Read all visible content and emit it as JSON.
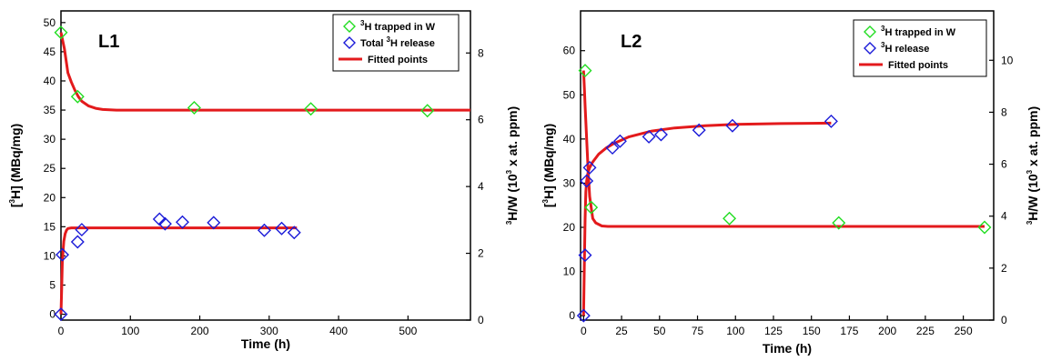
{
  "colors": {
    "trapped": "#22dd22",
    "release": "#1a1ad8",
    "fit": "#e31a1c",
    "axis": "#000000"
  },
  "chart_data": [
    {
      "type": "scatter",
      "panel_label": "L1",
      "xlabel": "Time (h)",
      "ylabel_prefix": "[",
      "ylabel_sup": "3",
      "ylabel_suffix": "H] (MBq/mg)",
      "y2label_sup": "3",
      "y2label_main": "H/W (10",
      "y2label_sup2": "3",
      "y2label_end": " x at. ppm)",
      "xlim": [
        0,
        590
      ],
      "ylim": [
        -1,
        52
      ],
      "y2lim": [
        0,
        9.26
      ],
      "xticks": [
        0,
        100,
        200,
        300,
        400,
        500
      ],
      "yticks": [
        0,
        5,
        10,
        15,
        20,
        25,
        30,
        35,
        40,
        45,
        50
      ],
      "y2ticks": [
        0,
        2,
        4,
        6,
        8
      ],
      "legend_position": "top-right",
      "legend": [
        {
          "pre": "",
          "sup": "3",
          "post": "H trapped in W",
          "kind": "marker",
          "series": "trapped"
        },
        {
          "pre": "Total ",
          "sup": "3",
          "post": "H release",
          "kind": "marker",
          "series": "release"
        },
        {
          "pre": "Fitted points",
          "sup": "",
          "post": "",
          "kind": "line",
          "series": "fit"
        }
      ],
      "series": [
        {
          "name": "3H trapped in W",
          "key": "trapped",
          "x": [
            0,
            24,
            192,
            360,
            528
          ],
          "y": [
            48.3,
            37.3,
            35.4,
            35.2,
            34.9
          ]
        },
        {
          "name": "Total 3H release",
          "key": "release",
          "x": [
            0,
            2,
            24,
            30,
            142,
            150,
            175,
            220,
            293,
            318,
            336
          ],
          "y": [
            0,
            10.2,
            12.4,
            14.5,
            16.3,
            15.5,
            15.8,
            15.7,
            14.4,
            14.7,
            14.0
          ]
        }
      ],
      "fits": [
        {
          "key": "fit_trapped",
          "x": [
            0,
            5,
            10,
            15,
            20,
            25,
            30,
            40,
            50,
            60,
            80,
            100,
            150,
            200,
            300,
            400,
            500,
            590
          ],
          "y": [
            48.3,
            45.5,
            41.4,
            39.8,
            38.4,
            37.3,
            36.5,
            35.7,
            35.3,
            35.1,
            35.0,
            35.0,
            35.0,
            35.0,
            35.0,
            35.0,
            35.0,
            35.0
          ]
        },
        {
          "key": "fit_release",
          "x": [
            0,
            1,
            2,
            4,
            6,
            8,
            10,
            15,
            20,
            30,
            50,
            100,
            200,
            300,
            340
          ],
          "y": [
            0,
            4.5,
            9.0,
            12.5,
            13.8,
            14.4,
            14.7,
            14.8,
            14.8,
            14.8,
            14.8,
            14.8,
            14.8,
            14.8,
            14.8
          ]
        }
      ]
    },
    {
      "type": "scatter",
      "panel_label": "L2",
      "xlabel": "Time (h)",
      "ylabel_prefix": "[",
      "ylabel_sup": "3",
      "ylabel_suffix": "H] (MBq/mg)",
      "y2label_sup": "3",
      "y2label_main": "H/W (10",
      "y2label_sup2": "3",
      "y2label_end": " x at. ppm)",
      "xlim": [
        -2,
        270
      ],
      "ylim": [
        -1,
        69
      ],
      "y2lim": [
        0,
        11.9
      ],
      "xticks": [
        0,
        25,
        50,
        75,
        100,
        125,
        150,
        175,
        200,
        225,
        250
      ],
      "yticks": [
        0,
        10,
        20,
        30,
        40,
        50,
        60
      ],
      "y2ticks": [
        0,
        2,
        4,
        6,
        8,
        10
      ],
      "legend_position": "top-right",
      "legend": [
        {
          "pre": "",
          "sup": "3",
          "post": "H trapped in W",
          "kind": "marker",
          "series": "trapped"
        },
        {
          "pre": "",
          "sup": "3",
          "post": "H release",
          "kind": "marker",
          "series": "release"
        },
        {
          "pre": "Fitted points",
          "sup": "",
          "post": "",
          "kind": "line",
          "series": "fit"
        }
      ],
      "series": [
        {
          "name": "3H trapped in W",
          "key": "trapped",
          "x": [
            1,
            5,
            96,
            168,
            264
          ],
          "y": [
            55.5,
            24.5,
            22.0,
            21.0,
            20.0
          ]
        },
        {
          "name": "3H release",
          "key": "release",
          "x": [
            0,
            1,
            2,
            4,
            19,
            24,
            43,
            51,
            76,
            98,
            163
          ],
          "y": [
            0,
            13.7,
            30.5,
            33.5,
            38.0,
            39.5,
            40.5,
            41.0,
            42.0,
            43.0,
            44.0
          ]
        }
      ],
      "fits": [
        {
          "key": "fit_trapped",
          "x": [
            0,
            0.5,
            1,
            2,
            3,
            4,
            6,
            8,
            12,
            16,
            20,
            50,
            100,
            150,
            200,
            264
          ],
          "y": [
            55.5,
            51.5,
            47.5,
            40.0,
            33.0,
            27.0,
            22.0,
            21.0,
            20.3,
            20.2,
            20.2,
            20.2,
            20.2,
            20.2,
            20.2,
            20.2
          ]
        },
        {
          "key": "fit_release",
          "x": [
            0,
            0.5,
            1,
            1.5,
            2,
            3,
            4,
            6,
            10,
            15,
            20,
            30,
            45,
            60,
            80,
            100,
            130,
            163
          ],
          "y": [
            0,
            12.0,
            22.0,
            28.0,
            30.5,
            32.5,
            33.5,
            34.8,
            36.6,
            38.0,
            39.0,
            40.5,
            41.8,
            42.5,
            43.0,
            43.3,
            43.5,
            43.6
          ]
        }
      ]
    }
  ]
}
